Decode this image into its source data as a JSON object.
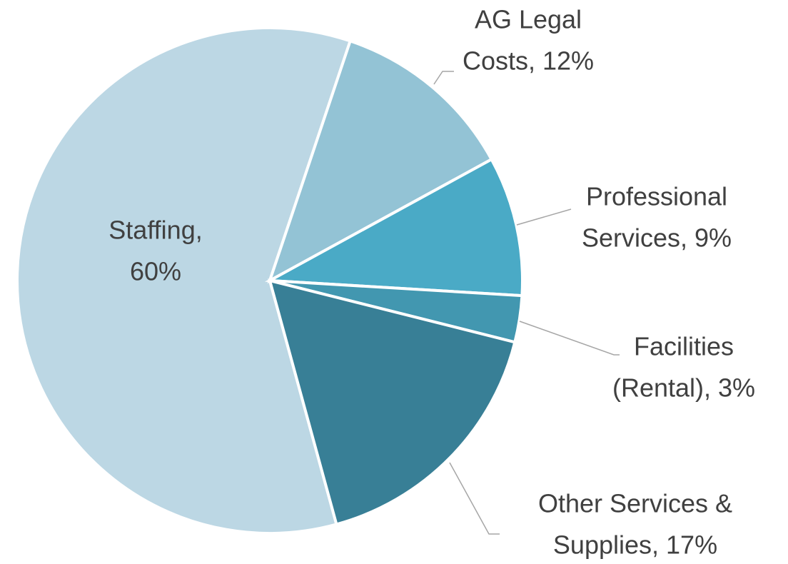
{
  "chart_data": {
    "type": "pie",
    "labels": [
      [
        "Staffing,",
        "60%"
      ],
      [
        "AG Legal",
        "Costs, 12%"
      ],
      [
        "Professional",
        "Services, 9%"
      ],
      [
        "Facilities",
        "(Rental), 3%"
      ],
      [
        "Other Services &",
        "Supplies, 17%"
      ]
    ],
    "values": [
      60,
      12,
      9,
      3,
      17
    ],
    "colors": [
      "#bcd7e4",
      "#93c3d5",
      "#4aaac6",
      "#4297b0",
      "#387f96"
    ]
  }
}
